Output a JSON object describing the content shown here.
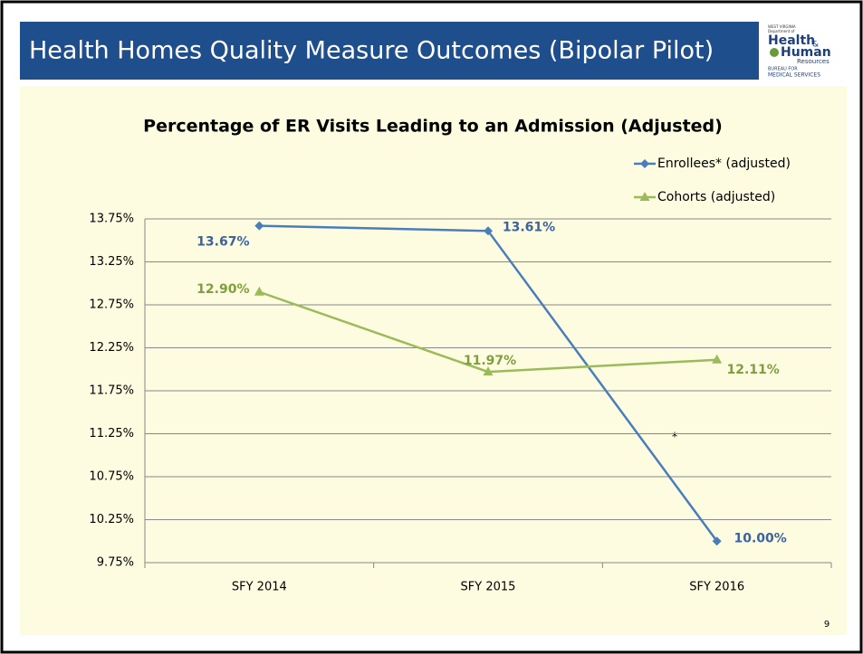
{
  "header": {
    "title": "Health Homes Quality Measure Outcomes (Bipolar Pilot)",
    "logo": [
      "WEST VIRGINIA",
      "Department of",
      "Health",
      "&",
      "Human",
      "Resources",
      "BUREAU FOR",
      "MEDICAL SERVICES"
    ]
  },
  "chart_data": {
    "type": "line",
    "title": "Percentage of ER Visits Leading to an Admission (Adjusted)",
    "categories": [
      "SFY 2014",
      "SFY 2015",
      "SFY 2016"
    ],
    "series": [
      {
        "name": "Enrollees* (adjusted)",
        "color": "#4a7ebb",
        "marker": "diamond",
        "values": [
          13.67,
          13.61,
          10.0
        ],
        "value_labels": [
          "13.67%",
          "13.61%",
          "10.00%"
        ]
      },
      {
        "name": "Cohorts (adjusted)",
        "color": "#9bbb59",
        "marker": "triangle",
        "values": [
          12.9,
          11.97,
          12.11
        ],
        "value_labels": [
          "12.90%",
          "11.97%",
          "12.11%"
        ]
      }
    ],
    "ylim": [
      9.75,
      13.75
    ],
    "yticks": [
      {
        "value": 9.75,
        "label": "9.75%"
      },
      {
        "value": 10.25,
        "label": "10.25%"
      },
      {
        "value": 10.75,
        "label": "10.75%"
      },
      {
        "value": 11.25,
        "label": "11.25%"
      },
      {
        "value": 11.75,
        "label": "11.75%"
      },
      {
        "value": 12.25,
        "label": "12.25%"
      },
      {
        "value": 12.75,
        "label": "12.75%"
      },
      {
        "value": 13.25,
        "label": "13.25%"
      },
      {
        "value": 13.75,
        "label": "13.75%"
      }
    ],
    "grid": true,
    "legend": "top-right",
    "annotations": [
      "*"
    ]
  },
  "page_number": "9"
}
